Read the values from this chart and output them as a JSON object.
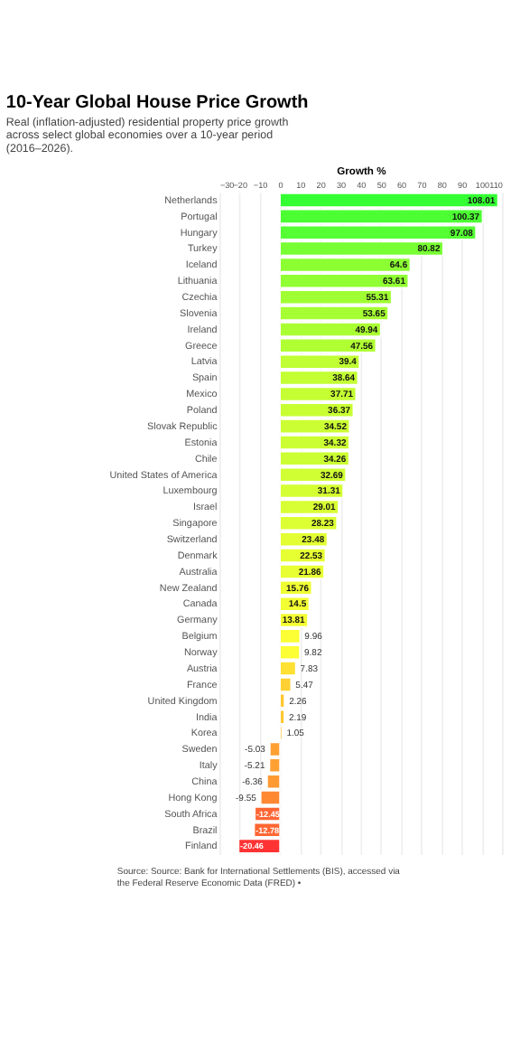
{
  "chart_data": {
    "type": "bar",
    "orientation": "horizontal",
    "title": "10-Year Global House Price Growth",
    "subtitle": "Real (inflation-adjusted) residential property price growth across select global economies over a 10-year period (2016–2026).",
    "xlabel": "Growth %",
    "categories": [
      "Netherlands",
      "Portugal",
      "Hungary",
      "Turkey",
      "Iceland",
      "Lithuania",
      "Czechia",
      "Slovenia",
      "Ireland",
      "Greece",
      "Latvia",
      "Spain",
      "Mexico",
      "Poland",
      "Slovak Republic",
      "Estonia",
      "Chile",
      "United States of America",
      "Luxembourg",
      "Israel",
      "Singapore",
      "Switzerland",
      "Denmark",
      "Australia",
      "New Zealand",
      "Canada",
      "Germany",
      "Belgium",
      "Norway",
      "Austria",
      "France",
      "United Kingdom",
      "India",
      "Korea",
      "Sweden",
      "Italy",
      "China",
      "Hong Kong",
      "South Africa",
      "Brazil",
      "Finland"
    ],
    "values": [
      108.01,
      100.37,
      97.08,
      80.82,
      64.6,
      63.61,
      55.31,
      53.65,
      49.94,
      47.56,
      39.4,
      38.64,
      37.71,
      36.37,
      34.52,
      34.32,
      34.26,
      32.69,
      31.31,
      29.01,
      28.23,
      23.48,
      22.53,
      21.86,
      15.76,
      14.5,
      13.81,
      9.96,
      9.82,
      7.83,
      5.47,
      2.26,
      2.19,
      1.05,
      -5.03,
      -5.21,
      -6.36,
      -9.55,
      -12.45,
      -12.78,
      -20.46
    ],
    "colors": [
      "#33ff33",
      "#4cff33",
      "#55ff33",
      "#77ff33",
      "#8cff33",
      "#90ff33",
      "#a0ff33",
      "#a6ff33",
      "#aaff33",
      "#b0ff33",
      "#c0ff33",
      "#c3ff33",
      "#c5ff33",
      "#c8ff33",
      "#ccff33",
      "#ccff33",
      "#ccff33",
      "#d0ff33",
      "#d4ff33",
      "#d8ff33",
      "#dcff33",
      "#e3ff33",
      "#e6ff33",
      "#e8ff33",
      "#f0ff33",
      "#f2ff33",
      "#f4ff33",
      "#fbff33",
      "#fcff33",
      "#ffe033",
      "#ffd033",
      "#ffc833",
      "#ffc833",
      "#ffc233",
      "#ffa033",
      "#ffa033",
      "#ff9a33",
      "#ff8833",
      "#ff6633",
      "#ff6633",
      "#ff3333"
    ],
    "xlim": [
      -30,
      110
    ],
    "xticks": [
      -30,
      -20,
      -10,
      0,
      10,
      20,
      30,
      40,
      50,
      60,
      70,
      80,
      90,
      100,
      110
    ],
    "grid": "x",
    "data_labels": true,
    "annotations": [
      "Source: Source: Bank for International Settlements (BIS), accessed via the Federal Reserve Economic Data (FRED) •"
    ]
  }
}
